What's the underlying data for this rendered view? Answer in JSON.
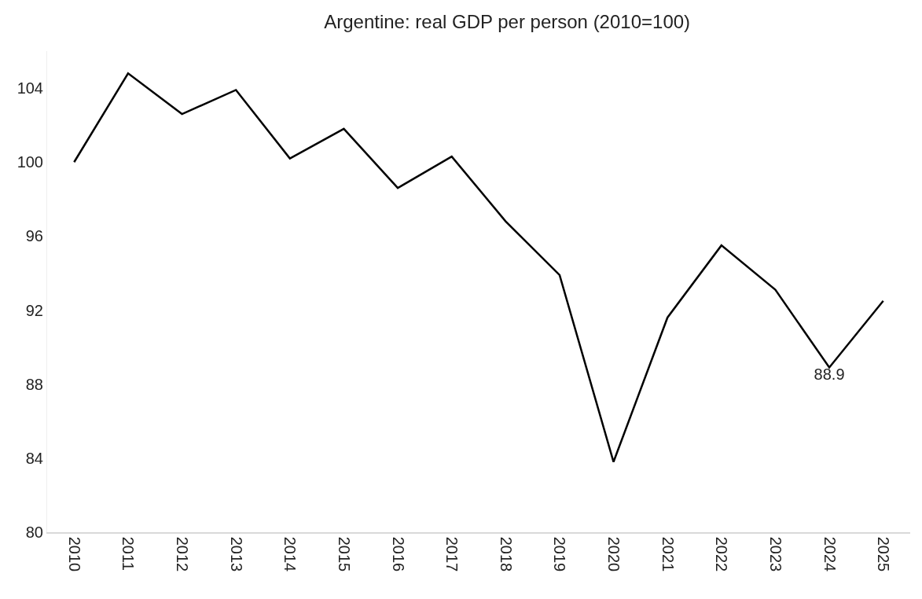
{
  "chart_data": {
    "type": "line",
    "title": "Argentine: real GDP per person (2010=100)",
    "categories": [
      "2010",
      "2011",
      "2012",
      "2013",
      "2014",
      "2015",
      "2016",
      "2017",
      "2018",
      "2019",
      "2020",
      "2021",
      "2022",
      "2023",
      "2024",
      "2025"
    ],
    "series": [
      {
        "color": "#000000",
        "values": [
          100,
          104.8,
          102.6,
          103.9,
          100.2,
          101.8,
          98.6,
          100.3,
          96.8,
          93.9,
          83.8,
          91.6,
          95.5,
          93.1,
          88.9,
          92.5
        ],
        "value_labels": [
          null,
          null,
          null,
          null,
          null,
          null,
          null,
          null,
          null,
          null,
          null,
          null,
          null,
          null,
          "88.9",
          null
        ]
      }
    ],
    "ylim": [
      80,
      106
    ],
    "yticks": [
      80,
      84,
      88,
      92,
      96,
      100,
      104
    ],
    "legend": false,
    "marker": "none",
    "line_style": "solid"
  }
}
